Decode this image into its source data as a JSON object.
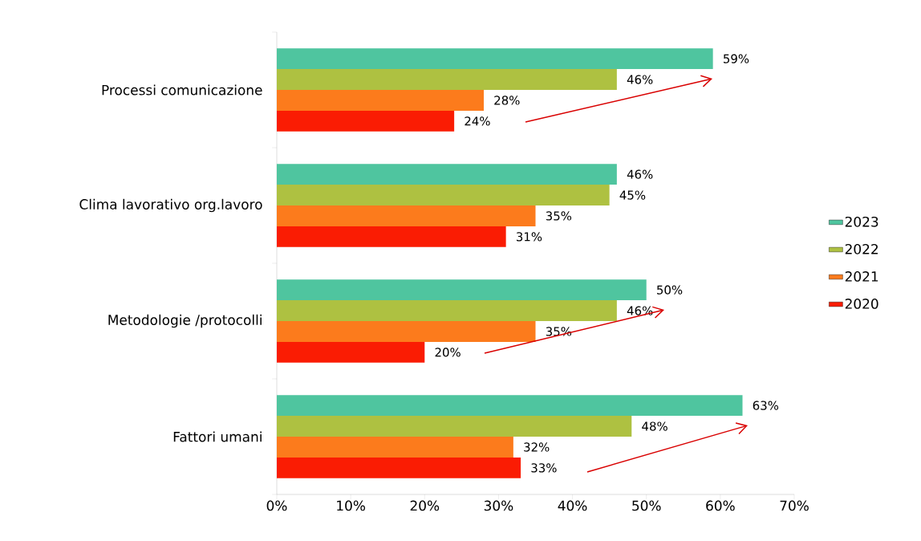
{
  "chart_data": {
    "type": "bar",
    "orientation": "horizontal",
    "categories": [
      "Processi comunicazione",
      "Clima lavorativo  org.lavoro",
      "Metodologie /protocolli",
      "Fattori umani"
    ],
    "series": [
      {
        "name": "2023",
        "color": "#4fc59f",
        "values": [
          59,
          46,
          50,
          63
        ],
        "value_labels": [
          "59%",
          "46%",
          "50%",
          "63%"
        ]
      },
      {
        "name": "2022",
        "color": "#aec141",
        "values": [
          46,
          45,
          46,
          48
        ],
        "value_labels": [
          "46%",
          "45%",
          "46%",
          "48%"
        ]
      },
      {
        "name": "2021",
        "color": "#fc7b1c",
        "values": [
          28,
          35,
          35,
          32
        ],
        "value_labels": [
          "28%",
          "35%",
          "35%",
          "32%"
        ]
      },
      {
        "name": "2020",
        "color": "#fa1c03",
        "values": [
          24,
          31,
          20,
          33
        ],
        "value_labels": [
          "24%",
          "31%",
          "20%",
          "33%"
        ]
      }
    ],
    "xlim": [
      0,
      70
    ],
    "xticks": [
      {
        "value": 0,
        "label": "0%"
      },
      {
        "value": 10,
        "label": "10%"
      },
      {
        "value": 20,
        "label": "20%"
      },
      {
        "value": 30,
        "label": "30%"
      },
      {
        "value": 40,
        "label": "40%"
      },
      {
        "value": 50,
        "label": "50%"
      },
      {
        "value": 60,
        "label": "60%"
      },
      {
        "value": 70,
        "label": "70%"
      }
    ],
    "legend": "right",
    "grid": false
  }
}
